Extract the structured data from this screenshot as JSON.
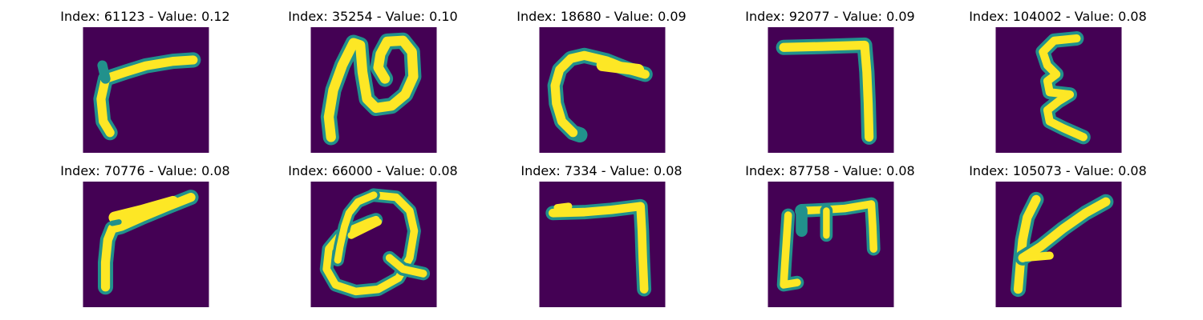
{
  "colors": {
    "background": "#440154",
    "stroke_edge": "#21918c",
    "stroke_core": "#fde725"
  },
  "panels": [
    {
      "title": "Index: 61123 - Value: 0.12",
      "glyph": "bent-stroke-letter"
    },
    {
      "title": "Index: 35254 - Value: 0.10",
      "glyph": "looped-letter"
    },
    {
      "title": "Index: 18680 - Value: 0.09",
      "glyph": "hook-curve-letter"
    },
    {
      "title": "Index: 92077 - Value: 0.09",
      "glyph": "angle-corner-letter"
    },
    {
      "title": "Index: 104002 - Value: 0.08",
      "glyph": "zigzag-letter"
    },
    {
      "title": "Index: 70776 - Value: 0.08",
      "glyph": "bent-stroke-letter"
    },
    {
      "title": "Index: 66000 - Value: 0.08",
      "glyph": "circled-letter"
    },
    {
      "title": "Index: 7334 - Value: 0.08",
      "glyph": "angle-corner-letter"
    },
    {
      "title": "Index: 87758 - Value: 0.08",
      "glyph": "bracket-letter"
    },
    {
      "title": "Index: 105073 - Value: 0.08",
      "glyph": "branch-letter"
    }
  ]
}
